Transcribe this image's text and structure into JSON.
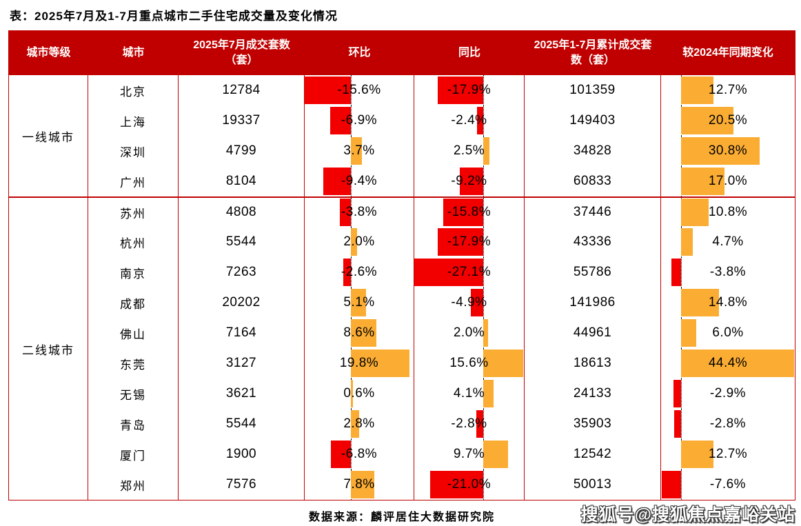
{
  "title": "表：2025年7月及1-7月重点城市二手住宅成交量及变化情况",
  "source": "数据来源：麟评居住大数据研究院",
  "watermark": "搜狐号@搜狐焦点嘉峪关站",
  "colors": {
    "header_background": "#c00000",
    "grid_line": "#c00000",
    "bar_negative": "#f20000",
    "bar_positive": "#faac33",
    "text": "#000000",
    "background": "#ffffff"
  },
  "table": {
    "headers": [
      "城市等级",
      "城市",
      "2025年7月成交套数（套）",
      "环比",
      "同比",
      "2025年1-7月累计成交套数（套）",
      "较2024年同期变化"
    ],
    "tiers": [
      {
        "label": "一线城市",
        "rows": [
          {
            "city": "北京",
            "jul": "12784",
            "mom": -15.6,
            "mom_label": "-15.6%",
            "yoy": -17.9,
            "yoy_label": "-17.9%",
            "cum": "101359",
            "chg": 12.7,
            "chg_label": "12.7%"
          },
          {
            "city": "上海",
            "jul": "19337",
            "mom": -6.9,
            "mom_label": "-6.9%",
            "yoy": -2.4,
            "yoy_label": "-2.4%",
            "cum": "149403",
            "chg": 20.5,
            "chg_label": "20.5%"
          },
          {
            "city": "深圳",
            "jul": "4799",
            "mom": 3.7,
            "mom_label": "3.7%",
            "yoy": 2.5,
            "yoy_label": "2.5%",
            "cum": "34828",
            "chg": 30.8,
            "chg_label": "30.8%"
          },
          {
            "city": "广州",
            "jul": "8104",
            "mom": -9.4,
            "mom_label": "-9.4%",
            "yoy": -9.2,
            "yoy_label": "-9.2%",
            "cum": "60833",
            "chg": 17.0,
            "chg_label": "17.0%"
          }
        ]
      },
      {
        "label": "二线城市",
        "rows": [
          {
            "city": "苏州",
            "jul": "4808",
            "mom": -3.8,
            "mom_label": "-3.8%",
            "yoy": -15.8,
            "yoy_label": "-15.8%",
            "cum": "37446",
            "chg": 10.8,
            "chg_label": "10.8%"
          },
          {
            "city": "杭州",
            "jul": "5544",
            "mom": 2.0,
            "mom_label": "2.0%",
            "yoy": -17.9,
            "yoy_label": "-17.9%",
            "cum": "43336",
            "chg": 4.7,
            "chg_label": "4.7%"
          },
          {
            "city": "南京",
            "jul": "7263",
            "mom": -2.6,
            "mom_label": "-2.6%",
            "yoy": -27.1,
            "yoy_label": "-27.1%",
            "cum": "55786",
            "chg": -3.8,
            "chg_label": "-3.8%"
          },
          {
            "city": "成都",
            "jul": "20202",
            "mom": 5.1,
            "mom_label": "5.1%",
            "yoy": -4.9,
            "yoy_label": "-4.9%",
            "cum": "141986",
            "chg": 14.8,
            "chg_label": "14.8%"
          },
          {
            "city": "佛山",
            "jul": "7164",
            "mom": 8.6,
            "mom_label": "8.6%",
            "yoy": 2.0,
            "yoy_label": "2.0%",
            "cum": "44961",
            "chg": 6.0,
            "chg_label": "6.0%"
          },
          {
            "city": "东莞",
            "jul": "3127",
            "mom": 19.8,
            "mom_label": "19.8%",
            "yoy": 15.6,
            "yoy_label": "15.6%",
            "cum": "18613",
            "chg": 44.4,
            "chg_label": "44.4%"
          },
          {
            "city": "无锡",
            "jul": "3621",
            "mom": 0.6,
            "mom_label": "0.6%",
            "yoy": 4.1,
            "yoy_label": "4.1%",
            "cum": "24133",
            "chg": -2.9,
            "chg_label": "-2.9%"
          },
          {
            "city": "青岛",
            "jul": "5544",
            "mom": 2.8,
            "mom_label": "2.8%",
            "yoy": -2.8,
            "yoy_label": "-2.8%",
            "cum": "35903",
            "chg": -2.8,
            "chg_label": "-2.8%"
          },
          {
            "city": "厦门",
            "jul": "1900",
            "mom": -6.8,
            "mom_label": "-6.8%",
            "yoy": 9.7,
            "yoy_label": "9.7%",
            "cum": "12542",
            "chg": 12.7,
            "chg_label": "12.7%"
          },
          {
            "city": "郑州",
            "jul": "7576",
            "mom": 7.8,
            "mom_label": "7.8%",
            "yoy": -21.0,
            "yoy_label": "-21.0%",
            "cum": "50013",
            "chg": -7.6,
            "chg_label": "-7.6%"
          }
        ]
      }
    ]
  },
  "chart_data": {
    "type": "table",
    "title": "表：2025年7月及1-7月重点城市二手住宅成交量及变化情况",
    "columns": [
      "城市等级",
      "城市",
      "2025年7月成交套数（套）",
      "环比",
      "同比",
      "2025年1-7月累计成交套数（套）",
      "较2024年同期变化"
    ],
    "rows": [
      [
        "一线城市",
        "北京",
        12784,
        "-15.6%",
        "-17.9%",
        101359,
        "12.7%"
      ],
      [
        "一线城市",
        "上海",
        19337,
        "-6.9%",
        "-2.4%",
        149403,
        "20.5%"
      ],
      [
        "一线城市",
        "深圳",
        4799,
        "3.7%",
        "2.5%",
        34828,
        "30.8%"
      ],
      [
        "一线城市",
        "广州",
        8104,
        "-9.4%",
        "-9.2%",
        60833,
        "17.0%"
      ],
      [
        "二线城市",
        "苏州",
        4808,
        "-3.8%",
        "-15.8%",
        37446,
        "10.8%"
      ],
      [
        "二线城市",
        "杭州",
        5544,
        "2.0%",
        "-17.9%",
        43336,
        "4.7%"
      ],
      [
        "二线城市",
        "南京",
        7263,
        "-2.6%",
        "-27.1%",
        55786,
        "-3.8%"
      ],
      [
        "二线城市",
        "成都",
        20202,
        "5.1%",
        "-4.9%",
        141986,
        "14.8%"
      ],
      [
        "二线城市",
        "佛山",
        7164,
        "8.6%",
        "2.0%",
        44961,
        "6.0%"
      ],
      [
        "二线城市",
        "东莞",
        3127,
        "19.8%",
        "15.6%",
        18613,
        "44.4%"
      ],
      [
        "二线城市",
        "无锡",
        3621,
        "0.6%",
        "4.1%",
        24133,
        "-2.9%"
      ],
      [
        "二线城市",
        "青岛",
        5544,
        "2.8%",
        "-2.8%",
        35903,
        "-2.8%"
      ],
      [
        "二线城市",
        "厦门",
        1900,
        "-6.8%",
        "9.7%",
        12542,
        "12.7%"
      ],
      [
        "二线城市",
        "郑州",
        7576,
        "7.8%",
        "-21.0%",
        50013,
        "-7.6%"
      ]
    ],
    "bar_columns": [
      "环比",
      "同比",
      "较2024年同期变化"
    ],
    "bar_colors": {
      "negative": "#f20000",
      "positive": "#faac33"
    },
    "layout_hints": {
      "bars_anchored_on_dotted_zero_axis": true,
      "negative_left_positive_right": true
    }
  }
}
